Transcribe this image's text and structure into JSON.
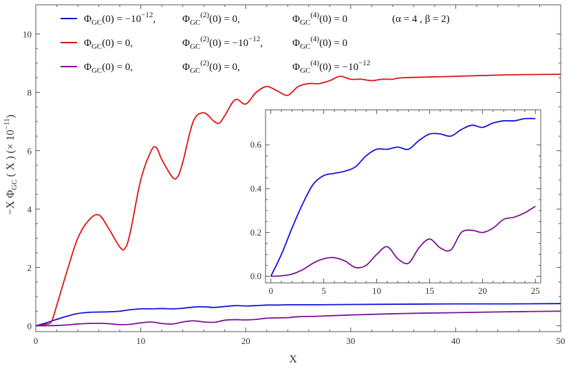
{
  "chart_data": [
    {
      "type": "line",
      "xlabel": "X",
      "ylabel": "−X ΦGC ( X ) (× 10⁻¹¹)",
      "xlim": [
        0,
        50
      ],
      "ylim": [
        -0.2,
        11
      ],
      "xticks": [
        0,
        10,
        20,
        30,
        40,
        50
      ],
      "yticks": [
        0,
        2,
        4,
        6,
        8,
        10
      ],
      "legend_placement": "top-left",
      "legend_note": "(α = 4 , β = 2)",
      "series": [
        {
          "name": "ΦGC(0) = −10⁻¹², ΦGC⁽²⁾(0) = 0, ΦGC⁽⁴⁾(0) = 0",
          "color": "#1010dd",
          "x": [
            0,
            1,
            2,
            3,
            4,
            5,
            6,
            7,
            8,
            9,
            10,
            11,
            12,
            13,
            14,
            15,
            16,
            17,
            18,
            19,
            20,
            21,
            22,
            23,
            24,
            25,
            27,
            30,
            35,
            40,
            45,
            50
          ],
          "y": [
            0,
            0.1,
            0.22,
            0.33,
            0.42,
            0.46,
            0.47,
            0.48,
            0.5,
            0.55,
            0.58,
            0.58,
            0.59,
            0.58,
            0.6,
            0.64,
            0.65,
            0.63,
            0.66,
            0.69,
            0.68,
            0.69,
            0.71,
            0.71,
            0.72,
            0.72,
            0.72,
            0.73,
            0.74,
            0.75,
            0.75,
            0.76
          ]
        },
        {
          "name": "ΦGC(0) = 0, ΦGC⁽²⁾(0) = −10⁻¹², ΦGC⁽⁴⁾(0) = 0",
          "color": "#e01010",
          "x": [
            0,
            1,
            1.5,
            2,
            3,
            4,
            5,
            6,
            7,
            8,
            8.5,
            9,
            10,
            11,
            11.5,
            12,
            13,
            13.5,
            14,
            15,
            16,
            17,
            17.5,
            18,
            19,
            20,
            21,
            22,
            23,
            24,
            25,
            26,
            27,
            28,
            29,
            30,
            31,
            32,
            33,
            34,
            35,
            40,
            45,
            50
          ],
          "y": [
            0,
            0.05,
            0.15,
            0.7,
            1.9,
            3.0,
            3.6,
            3.8,
            3.3,
            2.7,
            2.65,
            3.2,
            5.0,
            6.0,
            6.1,
            5.7,
            5.1,
            5.1,
            5.6,
            7.0,
            7.3,
            7.0,
            6.95,
            7.2,
            7.75,
            7.6,
            8.0,
            8.2,
            8.05,
            7.9,
            8.2,
            8.3,
            8.3,
            8.4,
            8.55,
            8.45,
            8.45,
            8.4,
            8.45,
            8.45,
            8.5,
            8.55,
            8.6,
            8.62
          ]
        },
        {
          "name": "ΦGC(0) = 0, ΦGC⁽²⁾(0) = 0, ΦGC⁽⁴⁾(0) = −10⁻¹²",
          "color": "#7a1090",
          "x": [
            0,
            1,
            2,
            3,
            4,
            5,
            6,
            7,
            8,
            9,
            10,
            11,
            12,
            13,
            14,
            15,
            16,
            17,
            18,
            19,
            20,
            21,
            22,
            23,
            24,
            25,
            27,
            30,
            35,
            40,
            45,
            50
          ],
          "y": [
            0,
            0.002,
            0.01,
            0.03,
            0.06,
            0.08,
            0.085,
            0.07,
            0.04,
            0.05,
            0.1,
            0.13,
            0.08,
            0.06,
            0.13,
            0.17,
            0.13,
            0.12,
            0.19,
            0.21,
            0.2,
            0.22,
            0.26,
            0.27,
            0.28,
            0.31,
            0.33,
            0.37,
            0.42,
            0.45,
            0.48,
            0.5
          ]
        }
      ]
    },
    {
      "type": "line",
      "role": "inset",
      "xlim": [
        -0.5,
        25.5
      ],
      "ylim": [
        -0.03,
        0.76
      ],
      "xticks": [
        0,
        5,
        10,
        15,
        20,
        25
      ],
      "yticks": [
        0.0,
        0.2,
        0.4,
        0.6
      ],
      "ytick_labels": [
        "0.0",
        "0.2",
        "0.4",
        "0.6"
      ],
      "series": [
        {
          "color": "#1010dd",
          "x": [
            0,
            1,
            2,
            3,
            4,
            5,
            6,
            7,
            8,
            9,
            10,
            11,
            12,
            13,
            14,
            15,
            16,
            17,
            18,
            19,
            20,
            21,
            22,
            23,
            24,
            25
          ],
          "y": [
            0,
            0.1,
            0.22,
            0.33,
            0.42,
            0.46,
            0.47,
            0.48,
            0.5,
            0.55,
            0.58,
            0.58,
            0.59,
            0.58,
            0.62,
            0.65,
            0.65,
            0.64,
            0.67,
            0.69,
            0.68,
            0.7,
            0.71,
            0.71,
            0.72,
            0.72
          ]
        },
        {
          "color": "#7a1090",
          "x": [
            0,
            1,
            2,
            3,
            4,
            5,
            6,
            7,
            8,
            9,
            10,
            11,
            12,
            13,
            14,
            15,
            16,
            17,
            18,
            19,
            20,
            21,
            22,
            23,
            24,
            25
          ],
          "y": [
            0,
            0.002,
            0.01,
            0.03,
            0.06,
            0.08,
            0.085,
            0.07,
            0.04,
            0.05,
            0.1,
            0.135,
            0.08,
            0.06,
            0.13,
            0.17,
            0.13,
            0.12,
            0.2,
            0.21,
            0.2,
            0.22,
            0.26,
            0.27,
            0.29,
            0.32
          ]
        }
      ]
    }
  ],
  "legend": [
    {
      "c1": "Φ",
      "c1sub": "GC",
      "c1rest": "(0) = −10",
      "c1sup": "−12",
      "c1end": ",",
      "c2sup": "(2)",
      "c2rest": "(0) = 0,",
      "c3sup": "(4)",
      "c3rest": "(0) = 0"
    },
    {
      "c1": "Φ",
      "c1sub": "GC",
      "c1rest": "(0) = 0,",
      "c1sup": "",
      "c1end": "",
      "c2sup": "(2)",
      "c2rest": "(0) = −10",
      "c2sup2": "−12",
      "c2end": ",",
      "c3sup": "(4)",
      "c3rest": "(0) = 0"
    },
    {
      "c1": "Φ",
      "c1sub": "GC",
      "c1rest": "(0) = 0,",
      "c1sup": "",
      "c1end": "",
      "c2sup": "(2)",
      "c2rest": "(0) = 0,",
      "c3sup": "(4)",
      "c3rest": "(0) = −10",
      "c3sup2": "−12"
    }
  ],
  "ylabel_parts": {
    "pre": "−X  Φ",
    "sub": "GC",
    "mid": " ( X )  (× 10",
    "sup": "−11",
    "post": ")"
  },
  "params": "(α = 4  ,  β = 2)"
}
